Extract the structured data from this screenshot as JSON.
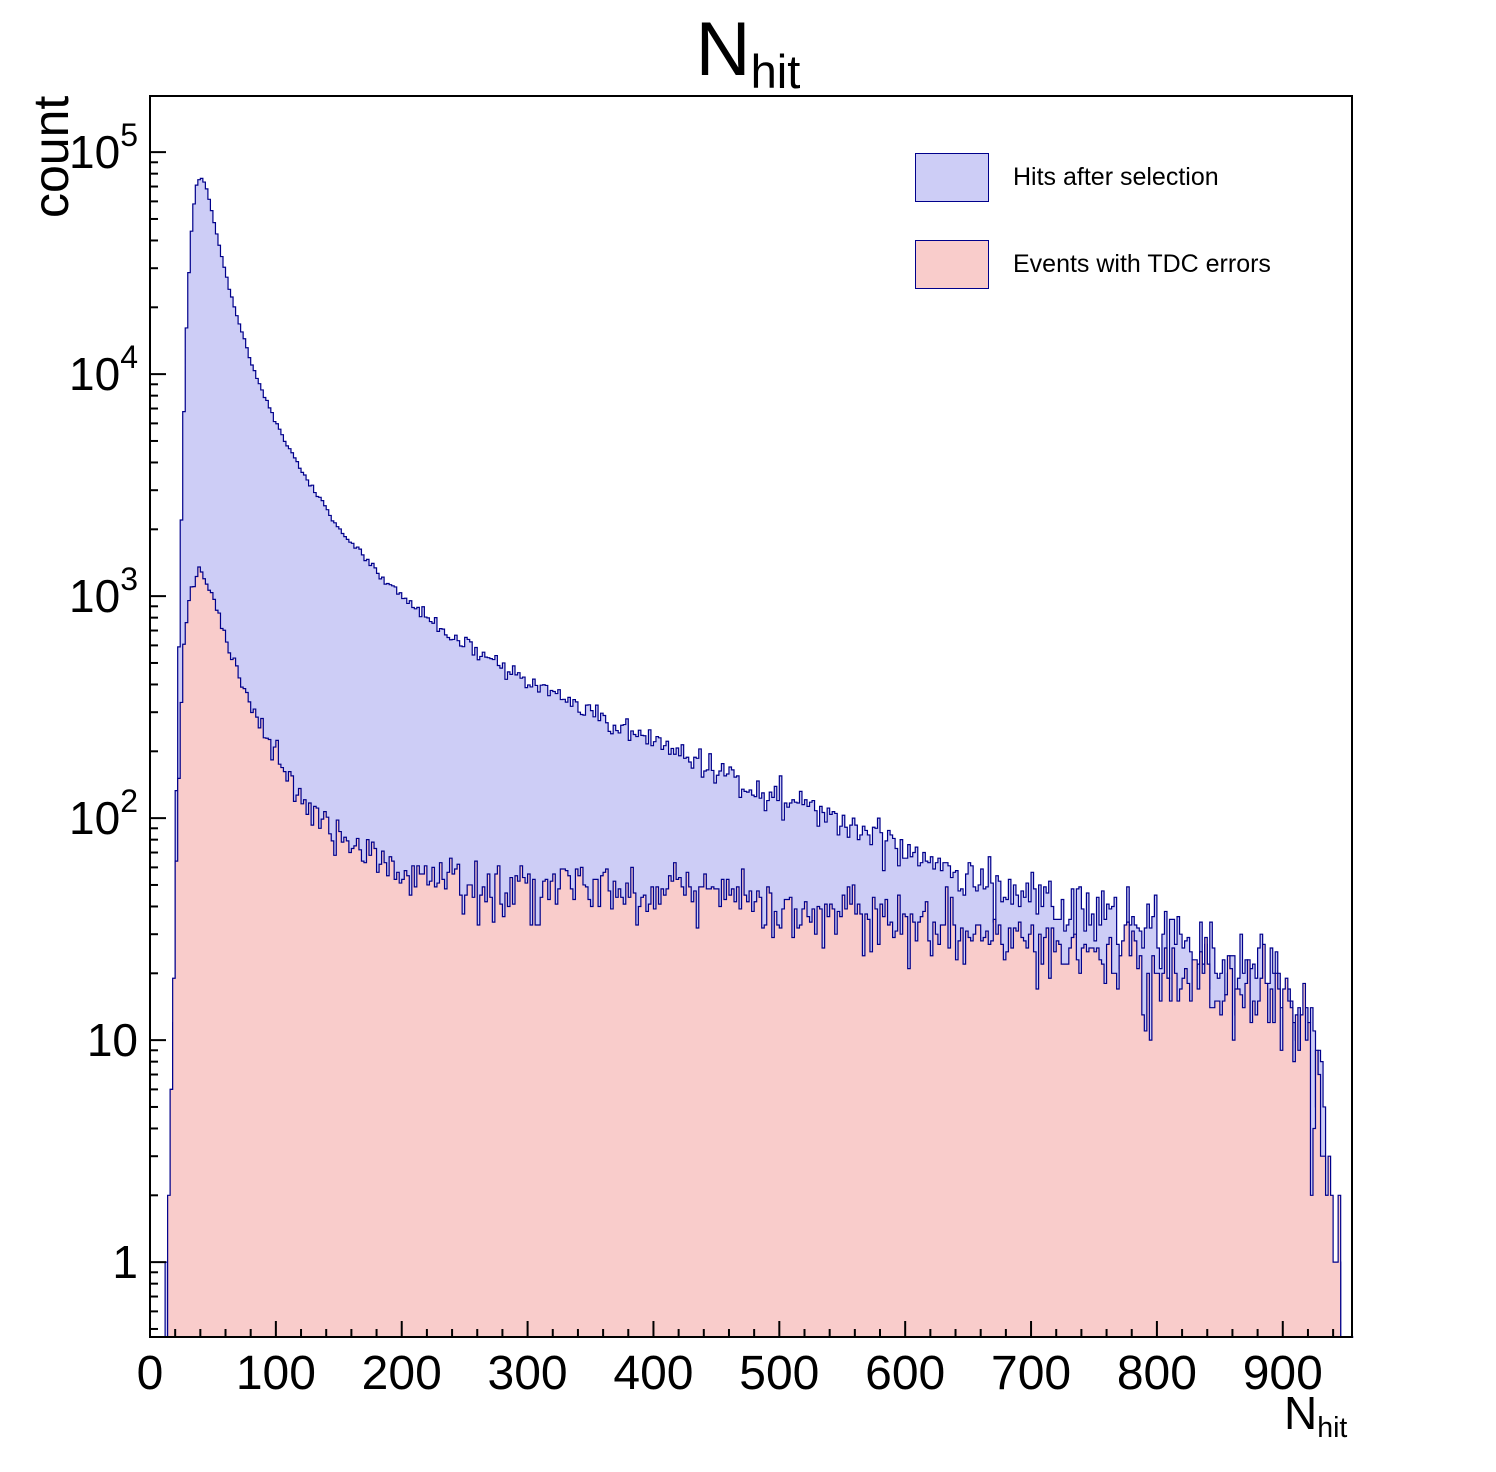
{
  "title": {
    "main": "N",
    "sub": "hit"
  },
  "axes": {
    "x": {
      "label_main": "N",
      "label_sub": "hit",
      "min": 0,
      "max": 955,
      "major_ticks": [
        0,
        100,
        200,
        300,
        400,
        500,
        600,
        700,
        800,
        900
      ],
      "minor_step": 20
    },
    "y": {
      "label": "count",
      "scale": "log",
      "min": 0.46,
      "max": 179000,
      "major_ticks": [
        1,
        10,
        100,
        1000,
        10000,
        100000
      ]
    }
  },
  "legend": {
    "items": [
      {
        "label": "Hits after selection"
      },
      {
        "label": "Events with TDC errors"
      }
    ]
  },
  "chart_data": {
    "type": "histogram",
    "title": "N_hit",
    "xlabel": "N_hit",
    "ylabel": "count",
    "y_scale": "log",
    "xlim": [
      0,
      955
    ],
    "ylim": [
      0.46,
      179000
    ],
    "bin_width": 2,
    "grid": false,
    "legend_position": "top-right",
    "series": [
      {
        "name": "Hits after selection",
        "fill": "#cdcdf6",
        "stroke": "#00008b",
        "seed": 42,
        "anchors": [
          [
            12,
            1
          ],
          [
            16,
            4
          ],
          [
            20,
            60
          ],
          [
            24,
            1200
          ],
          [
            28,
            12000
          ],
          [
            32,
            38000
          ],
          [
            36,
            68000
          ],
          [
            40,
            78000
          ],
          [
            44,
            72000
          ],
          [
            48,
            58000
          ],
          [
            55,
            38000
          ],
          [
            62,
            25500
          ],
          [
            70,
            17500
          ],
          [
            80,
            11500
          ],
          [
            90,
            8200
          ],
          [
            100,
            6100
          ],
          [
            110,
            4700
          ],
          [
            120,
            3700
          ],
          [
            130,
            3000
          ],
          [
            140,
            2450
          ],
          [
            150,
            2050
          ],
          [
            160,
            1750
          ],
          [
            170,
            1500
          ],
          [
            180,
            1300
          ],
          [
            190,
            1130
          ],
          [
            200,
            1000
          ],
          [
            220,
            800
          ],
          [
            240,
            660
          ],
          [
            260,
            560
          ],
          [
            280,
            480
          ],
          [
            300,
            415
          ],
          [
            325,
            350
          ],
          [
            350,
            295
          ],
          [
            375,
            255
          ],
          [
            400,
            220
          ],
          [
            430,
            185
          ],
          [
            460,
            157
          ],
          [
            490,
            133
          ],
          [
            520,
            113
          ],
          [
            550,
            96
          ],
          [
            580,
            82
          ],
          [
            610,
            70
          ],
          [
            640,
            60
          ],
          [
            670,
            52
          ],
          [
            700,
            45
          ],
          [
            730,
            40
          ],
          [
            760,
            35
          ],
          [
            790,
            31
          ],
          [
            820,
            27
          ],
          [
            850,
            24
          ],
          [
            875,
            21
          ],
          [
            895,
            18
          ],
          [
            910,
            15
          ],
          [
            920,
            12
          ],
          [
            928,
            8
          ],
          [
            934,
            3
          ],
          [
            940,
            1.2
          ],
          [
            946,
            0.8
          ]
        ]
      },
      {
        "name": "Events with TDC errors",
        "fill": "#f9cccb",
        "stroke": "#00008b",
        "seed": 1337,
        "anchors": [
          [
            15,
            1
          ],
          [
            18,
            8
          ],
          [
            21,
            60
          ],
          [
            24,
            250
          ],
          [
            27,
            600
          ],
          [
            30,
            900
          ],
          [
            34,
            1150
          ],
          [
            38,
            1300
          ],
          [
            42,
            1280
          ],
          [
            46,
            1150
          ],
          [
            50,
            980
          ],
          [
            55,
            800
          ],
          [
            60,
            650
          ],
          [
            66,
            520
          ],
          [
            72,
            420
          ],
          [
            80,
            330
          ],
          [
            88,
            265
          ],
          [
            96,
            215
          ],
          [
            105,
            175
          ],
          [
            115,
            140
          ],
          [
            125,
            117
          ],
          [
            135,
            100
          ],
          [
            145,
            88
          ],
          [
            155,
            78
          ],
          [
            165,
            71
          ],
          [
            180,
            64
          ],
          [
            200,
            58
          ],
          [
            225,
            54
          ],
          [
            250,
            52
          ],
          [
            280,
            50
          ],
          [
            320,
            49
          ],
          [
            360,
            48
          ],
          [
            400,
            47
          ],
          [
            440,
            45
          ],
          [
            480,
            42
          ],
          [
            520,
            39
          ],
          [
            560,
            36
          ],
          [
            600,
            34
          ],
          [
            640,
            31
          ],
          [
            680,
            29
          ],
          [
            720,
            26
          ],
          [
            760,
            24
          ],
          [
            800,
            21
          ],
          [
            840,
            19
          ],
          [
            870,
            17
          ],
          [
            895,
            15
          ],
          [
            910,
            13
          ],
          [
            920,
            11
          ],
          [
            928,
            7
          ],
          [
            934,
            3
          ],
          [
            940,
            1.2
          ],
          [
            946,
            0.8
          ]
        ]
      }
    ]
  }
}
